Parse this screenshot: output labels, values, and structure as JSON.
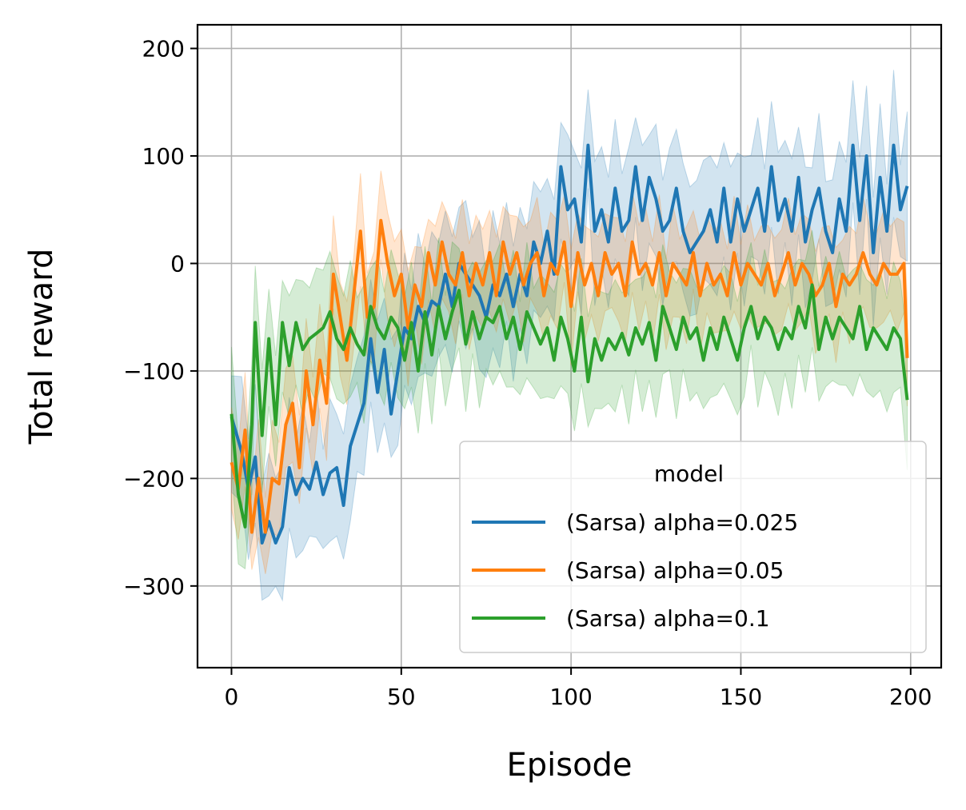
{
  "chart_data": {
    "type": "line",
    "title": "",
    "xlabel": "Episode",
    "ylabel": "Total reward",
    "xlim": [
      -10,
      209
    ],
    "ylim": [
      -376,
      222
    ],
    "xticks": [
      0,
      50,
      100,
      150,
      200
    ],
    "yticks": [
      -300,
      -200,
      -100,
      0,
      100,
      200
    ],
    "xtick_labels": [
      "0",
      "50",
      "100",
      "150",
      "200"
    ],
    "ytick_labels": [
      "−300",
      "−200",
      "−100",
      "0",
      "100",
      "200"
    ],
    "grid": true,
    "legend": {
      "title": "model",
      "placement": "lower-right"
    },
    "series": [
      {
        "name": "(Sarsa) alpha=0.025",
        "color": "#1f77b4",
        "shaded_band": true,
        "points": [
          [
            0,
            -143
          ],
          [
            3,
            -175
          ],
          [
            5,
            -210
          ],
          [
            7,
            -180
          ],
          [
            9,
            -260
          ],
          [
            11,
            -240
          ],
          [
            13,
            -260
          ],
          [
            15,
            -245
          ],
          [
            17,
            -190
          ],
          [
            19,
            -215
          ],
          [
            21,
            -200
          ],
          [
            23,
            -210
          ],
          [
            25,
            -185
          ],
          [
            27,
            -215
          ],
          [
            29,
            -195
          ],
          [
            31,
            -190
          ],
          [
            33,
            -225
          ],
          [
            35,
            -170
          ],
          [
            37,
            -150
          ],
          [
            39,
            -130
          ],
          [
            41,
            -70
          ],
          [
            43,
            -120
          ],
          [
            45,
            -80
          ],
          [
            47,
            -140
          ],
          [
            49,
            -100
          ],
          [
            51,
            -60
          ],
          [
            53,
            -70
          ],
          [
            55,
            -40
          ],
          [
            57,
            -55
          ],
          [
            59,
            -35
          ],
          [
            61,
            -40
          ],
          [
            63,
            -10
          ],
          [
            65,
            -40
          ],
          [
            67,
            0
          ],
          [
            69,
            -10
          ],
          [
            71,
            -20
          ],
          [
            73,
            -30
          ],
          [
            75,
            -50
          ],
          [
            77,
            -20
          ],
          [
            79,
            -30
          ],
          [
            81,
            -10
          ],
          [
            83,
            -40
          ],
          [
            85,
            -10
          ],
          [
            87,
            -30
          ],
          [
            89,
            20
          ],
          [
            91,
            0
          ],
          [
            93,
            30
          ],
          [
            95,
            -10
          ],
          [
            97,
            90
          ],
          [
            99,
            50
          ],
          [
            101,
            60
          ],
          [
            103,
            20
          ],
          [
            105,
            110
          ],
          [
            107,
            30
          ],
          [
            109,
            50
          ],
          [
            111,
            20
          ],
          [
            113,
            70
          ],
          [
            115,
            30
          ],
          [
            117,
            40
          ],
          [
            119,
            90
          ],
          [
            121,
            40
          ],
          [
            123,
            80
          ],
          [
            125,
            60
          ],
          [
            127,
            30
          ],
          [
            129,
            40
          ],
          [
            131,
            70
          ],
          [
            133,
            30
          ],
          [
            135,
            10
          ],
          [
            137,
            20
          ],
          [
            139,
            30
          ],
          [
            141,
            50
          ],
          [
            143,
            20
          ],
          [
            145,
            70
          ],
          [
            147,
            20
          ],
          [
            149,
            60
          ],
          [
            151,
            30
          ],
          [
            153,
            50
          ],
          [
            155,
            70
          ],
          [
            157,
            30
          ],
          [
            159,
            90
          ],
          [
            161,
            40
          ],
          [
            163,
            60
          ],
          [
            165,
            30
          ],
          [
            167,
            80
          ],
          [
            169,
            20
          ],
          [
            171,
            50
          ],
          [
            173,
            70
          ],
          [
            175,
            30
          ],
          [
            177,
            10
          ],
          [
            179,
            60
          ],
          [
            181,
            30
          ],
          [
            183,
            110
          ],
          [
            185,
            40
          ],
          [
            187,
            100
          ],
          [
            189,
            10
          ],
          [
            191,
            80
          ],
          [
            193,
            30
          ],
          [
            195,
            110
          ],
          [
            197,
            50
          ],
          [
            199,
            72
          ]
        ]
      },
      {
        "name": "(Sarsa) alpha=0.05",
        "color": "#ff7f0e",
        "shaded_band": true,
        "points": [
          [
            0,
            -185
          ],
          [
            2,
            -210
          ],
          [
            4,
            -155
          ],
          [
            6,
            -250
          ],
          [
            8,
            -200
          ],
          [
            10,
            -250
          ],
          [
            12,
            -200
          ],
          [
            14,
            -205
          ],
          [
            16,
            -150
          ],
          [
            18,
            -130
          ],
          [
            20,
            -190
          ],
          [
            22,
            -100
          ],
          [
            24,
            -150
          ],
          [
            26,
            -90
          ],
          [
            28,
            -130
          ],
          [
            30,
            -10
          ],
          [
            32,
            -50
          ],
          [
            34,
            -90
          ],
          [
            36,
            -30
          ],
          [
            38,
            30
          ],
          [
            40,
            -50
          ],
          [
            42,
            -40
          ],
          [
            44,
            40
          ],
          [
            46,
            0
          ],
          [
            48,
            -30
          ],
          [
            50,
            -10
          ],
          [
            52,
            -60
          ],
          [
            54,
            -20
          ],
          [
            56,
            -40
          ],
          [
            58,
            10
          ],
          [
            60,
            -20
          ],
          [
            62,
            20
          ],
          [
            64,
            -10
          ],
          [
            66,
            -20
          ],
          [
            68,
            10
          ],
          [
            70,
            -30
          ],
          [
            72,
            0
          ],
          [
            74,
            -20
          ],
          [
            76,
            10
          ],
          [
            78,
            -30
          ],
          [
            80,
            20
          ],
          [
            82,
            -10
          ],
          [
            84,
            10
          ],
          [
            86,
            -20
          ],
          [
            88,
            0
          ],
          [
            90,
            10
          ],
          [
            92,
            -30
          ],
          [
            94,
            0
          ],
          [
            96,
            -10
          ],
          [
            98,
            20
          ],
          [
            100,
            -40
          ],
          [
            102,
            10
          ],
          [
            104,
            -20
          ],
          [
            106,
            0
          ],
          [
            108,
            -30
          ],
          [
            110,
            10
          ],
          [
            112,
            -10
          ],
          [
            114,
            0
          ],
          [
            116,
            -30
          ],
          [
            118,
            20
          ],
          [
            120,
            -10
          ],
          [
            122,
            0
          ],
          [
            124,
            -20
          ],
          [
            126,
            10
          ],
          [
            128,
            -30
          ],
          [
            130,
            0
          ],
          [
            132,
            -10
          ],
          [
            134,
            -20
          ],
          [
            136,
            10
          ],
          [
            138,
            -30
          ],
          [
            140,
            0
          ],
          [
            142,
            -20
          ],
          [
            144,
            -10
          ],
          [
            146,
            -30
          ],
          [
            148,
            10
          ],
          [
            150,
            -20
          ],
          [
            152,
            0
          ],
          [
            154,
            -10
          ],
          [
            156,
            -20
          ],
          [
            158,
            0
          ],
          [
            160,
            -30
          ],
          [
            162,
            -10
          ],
          [
            164,
            10
          ],
          [
            166,
            -20
          ],
          [
            168,
            0
          ],
          [
            170,
            -10
          ],
          [
            172,
            -30
          ],
          [
            174,
            -20
          ],
          [
            176,
            0
          ],
          [
            178,
            -40
          ],
          [
            180,
            -10
          ],
          [
            182,
            -20
          ],
          [
            184,
            -10
          ],
          [
            186,
            10
          ],
          [
            188,
            -10
          ],
          [
            190,
            -20
          ],
          [
            192,
            0
          ],
          [
            194,
            -10
          ],
          [
            196,
            -10
          ],
          [
            198,
            0
          ],
          [
            199,
            -88
          ]
        ]
      },
      {
        "name": "(Sarsa) alpha=0.1",
        "color": "#2ca02c",
        "shaded_band": true,
        "points": [
          [
            0,
            -140
          ],
          [
            2,
            -215
          ],
          [
            4,
            -245
          ],
          [
            6,
            -150
          ],
          [
            7,
            -55
          ],
          [
            9,
            -160
          ],
          [
            11,
            -70
          ],
          [
            13,
            -150
          ],
          [
            15,
            -55
          ],
          [
            17,
            -95
          ],
          [
            19,
            -55
          ],
          [
            21,
            -80
          ],
          [
            23,
            -70
          ],
          [
            25,
            -65
          ],
          [
            27,
            -60
          ],
          [
            29,
            -45
          ],
          [
            31,
            -70
          ],
          [
            33,
            -80
          ],
          [
            35,
            -60
          ],
          [
            37,
            -75
          ],
          [
            39,
            -85
          ],
          [
            41,
            -40
          ],
          [
            43,
            -60
          ],
          [
            45,
            -70
          ],
          [
            47,
            -50
          ],
          [
            49,
            -60
          ],
          [
            51,
            -90
          ],
          [
            53,
            -55
          ],
          [
            55,
            -100
          ],
          [
            57,
            -45
          ],
          [
            59,
            -85
          ],
          [
            61,
            -40
          ],
          [
            63,
            -70
          ],
          [
            65,
            -45
          ],
          [
            67,
            -25
          ],
          [
            69,
            -75
          ],
          [
            71,
            -45
          ],
          [
            73,
            -70
          ],
          [
            75,
            -50
          ],
          [
            77,
            -55
          ],
          [
            79,
            -40
          ],
          [
            81,
            -70
          ],
          [
            83,
            -50
          ],
          [
            85,
            -80
          ],
          [
            87,
            -45
          ],
          [
            89,
            -60
          ],
          [
            91,
            -75
          ],
          [
            93,
            -60
          ],
          [
            95,
            -90
          ],
          [
            97,
            -50
          ],
          [
            99,
            -70
          ],
          [
            101,
            -100
          ],
          [
            103,
            -50
          ],
          [
            105,
            -110
          ],
          [
            107,
            -70
          ],
          [
            109,
            -90
          ],
          [
            111,
            -70
          ],
          [
            113,
            -80
          ],
          [
            115,
            -65
          ],
          [
            117,
            -85
          ],
          [
            119,
            -60
          ],
          [
            121,
            -75
          ],
          [
            123,
            -55
          ],
          [
            125,
            -90
          ],
          [
            127,
            -40
          ],
          [
            129,
            -60
          ],
          [
            131,
            -80
          ],
          [
            133,
            -50
          ],
          [
            135,
            -70
          ],
          [
            137,
            -60
          ],
          [
            139,
            -90
          ],
          [
            141,
            -60
          ],
          [
            143,
            -80
          ],
          [
            145,
            -50
          ],
          [
            147,
            -70
          ],
          [
            149,
            -90
          ],
          [
            151,
            -60
          ],
          [
            153,
            -40
          ],
          [
            155,
            -70
          ],
          [
            157,
            -50
          ],
          [
            159,
            -60
          ],
          [
            161,
            -80
          ],
          [
            163,
            -60
          ],
          [
            165,
            -70
          ],
          [
            167,
            -40
          ],
          [
            169,
            -60
          ],
          [
            171,
            -20
          ],
          [
            173,
            -80
          ],
          [
            175,
            -50
          ],
          [
            177,
            -70
          ],
          [
            179,
            -50
          ],
          [
            181,
            -60
          ],
          [
            183,
            -70
          ],
          [
            185,
            -40
          ],
          [
            187,
            -80
          ],
          [
            189,
            -60
          ],
          [
            191,
            -70
          ],
          [
            193,
            -80
          ],
          [
            195,
            -60
          ],
          [
            197,
            -70
          ],
          [
            199,
            -127
          ]
        ]
      }
    ]
  }
}
